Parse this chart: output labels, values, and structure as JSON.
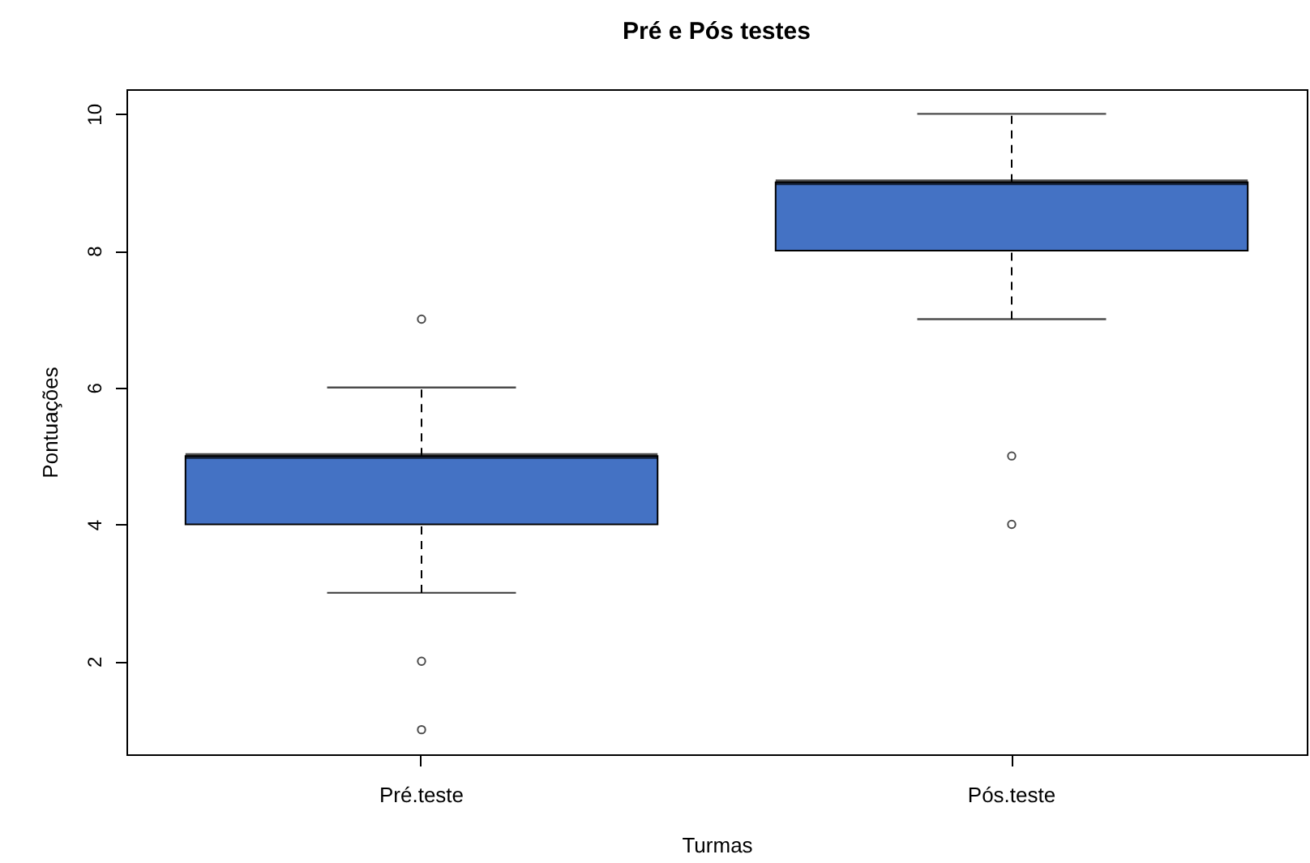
{
  "chart_data": {
    "type": "box",
    "title": "Pré e Pós testes",
    "xlabel": "Turmas",
    "ylabel": "Pontuações",
    "categories": [
      "Pré.teste",
      "Pós.teste"
    ],
    "series": [
      {
        "color": "#4472c4",
        "boxes": [
          {
            "low": 3,
            "q1": 4,
            "median": 5,
            "q3": 5,
            "high": 6,
            "outliers": [
              7,
              2,
              1
            ]
          },
          {
            "low": 7,
            "q1": 8,
            "median": 9,
            "q3": 9,
            "high": 10,
            "outliers": [
              5,
              4
            ]
          }
        ]
      }
    ],
    "ylim": [
      0.64,
      10.36
    ],
    "yticks": [
      2,
      4,
      6,
      8,
      10
    ],
    "grid": false
  }
}
